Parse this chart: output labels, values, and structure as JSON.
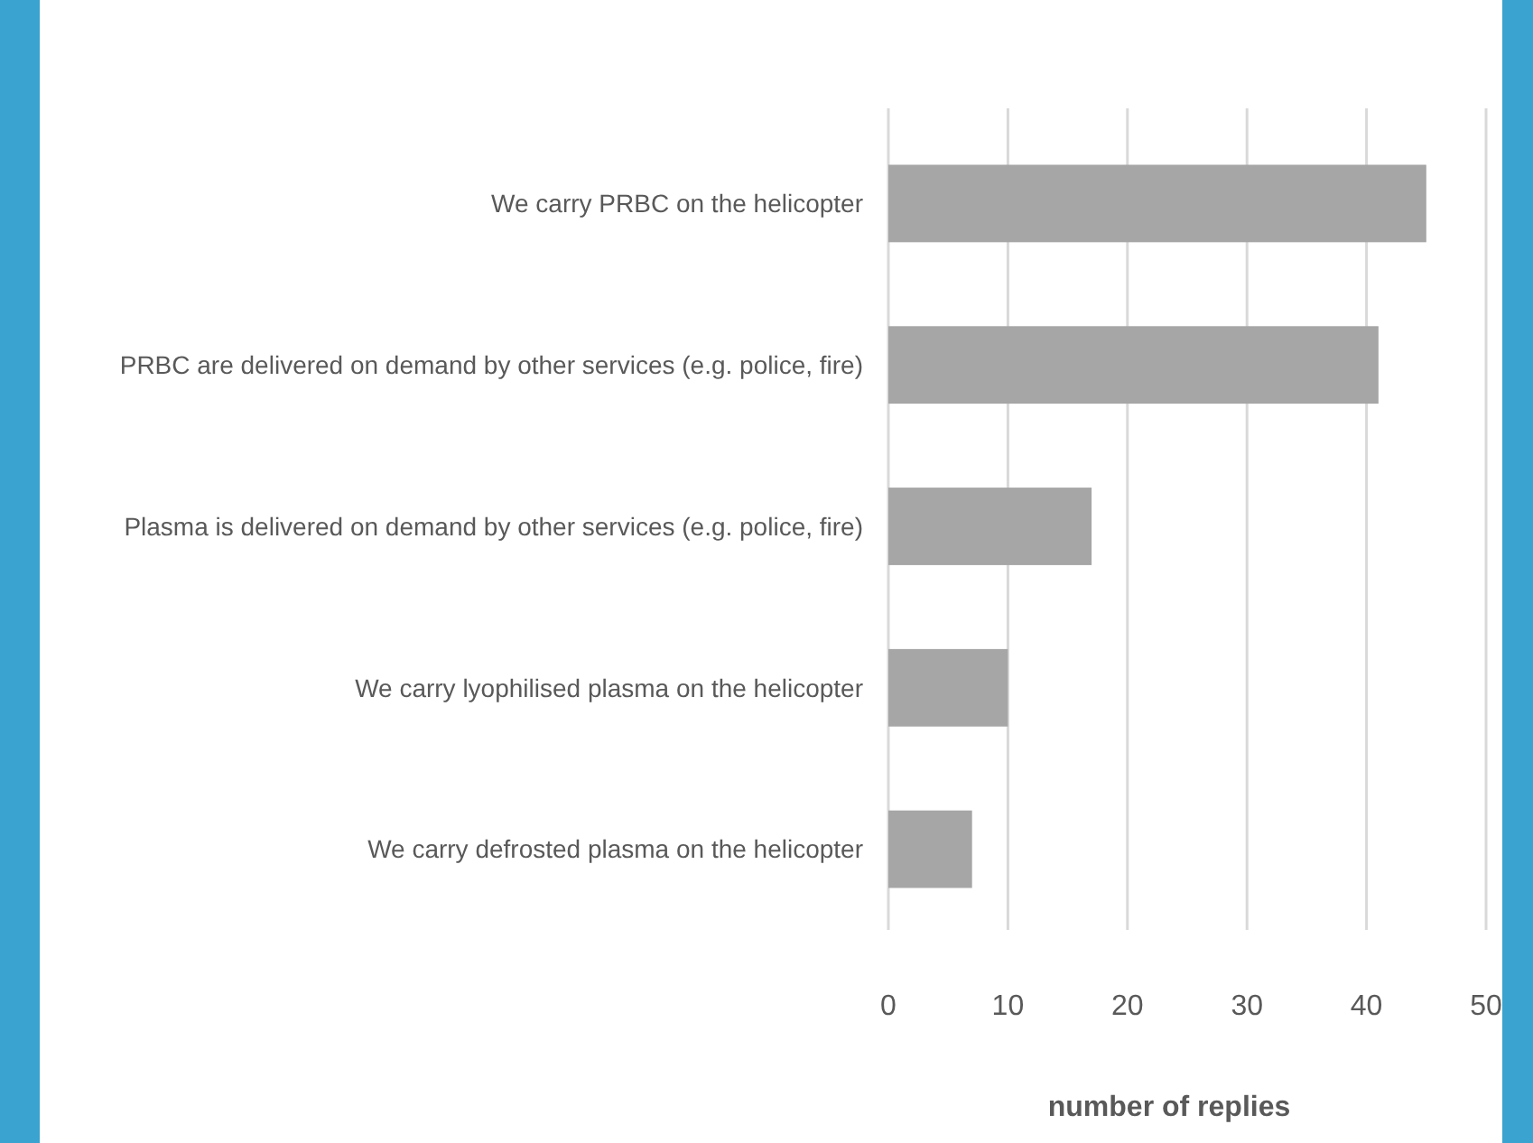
{
  "chart_data": {
    "type": "bar",
    "orientation": "horizontal",
    "xlabel": "number of replies",
    "categories": [
      "We carry PRBC on the helicopter",
      "PRBC are delivered on demand by other services (e.g. police, fire)",
      "Plasma is delivered on demand by other services (e.g. police, fire)",
      "We carry lyophilised plasma on the helicopter",
      "We carry defrosted plasma on the helicopter"
    ],
    "values": [
      45,
      41,
      17,
      10,
      7
    ],
    "color": "#a6a6a6",
    "xlim": [
      0,
      50
    ],
    "xticks": [
      0,
      10,
      20,
      30,
      40,
      50
    ],
    "grid": "x"
  }
}
